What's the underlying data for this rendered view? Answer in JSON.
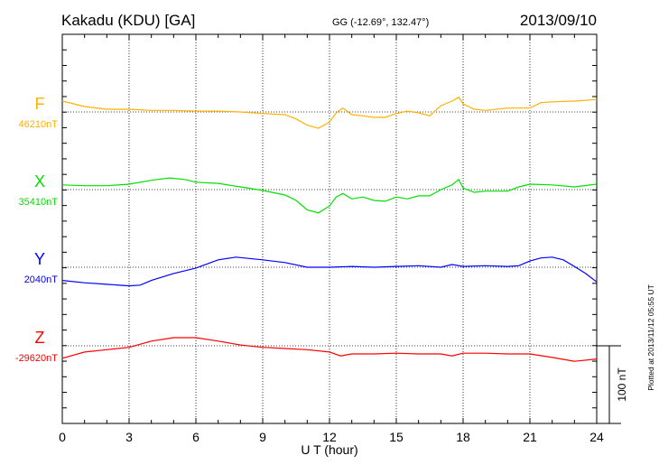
{
  "chart_data": {
    "type": "line",
    "title": "Kakadu (KDU)  [GA]",
    "subtitle": "GG (-12.69°, 132.47°)",
    "date": "2013/09/10",
    "xlabel": "U T (hour)",
    "xlim": [
      0,
      24
    ],
    "xticks": [
      "0",
      "3",
      "6",
      "9",
      "12",
      "15",
      "18",
      "21",
      "24"
    ],
    "scale_bar": "100 nT",
    "footer": "Plotted at 2013/11/12 05:55 UT",
    "grid": true,
    "series": [
      {
        "name": "F",
        "baseline_label": "46210nT",
        "color": "#ffb000",
        "x": [
          0,
          1,
          2,
          3,
          4,
          5,
          6,
          7,
          8,
          9,
          10,
          10.5,
          11,
          11.5,
          12,
          12.3,
          12.6,
          13,
          13.5,
          14,
          14.5,
          15,
          15.5,
          16,
          16.5,
          17,
          17.5,
          17.8,
          18,
          18.5,
          19,
          20,
          21,
          21.5,
          22,
          23,
          24
        ],
        "y": [
          14,
          7,
          3.5,
          3.5,
          2,
          2,
          1,
          1,
          0,
          -2,
          -3.5,
          -9,
          -17,
          -21,
          -13,
          -1,
          5,
          -3.5,
          -5,
          -7,
          -7,
          -2,
          1,
          -1,
          -5,
          8,
          14,
          19,
          10.5,
          3.5,
          2,
          5,
          5,
          12,
          13,
          14,
          16
        ]
      },
      {
        "name": "X",
        "baseline_label": "35410nT",
        "color": "#00e000",
        "x": [
          0,
          1,
          2,
          3,
          4,
          4.8,
          5.5,
          6,
          7,
          8,
          9,
          10,
          10.5,
          11,
          11.5,
          12,
          12.3,
          12.6,
          13,
          13.5,
          14,
          14.5,
          15,
          15.5,
          16,
          16.5,
          17,
          17.5,
          17.8,
          18,
          18.5,
          19,
          20,
          20.5,
          21,
          22,
          23,
          24
        ],
        "y": [
          6,
          5,
          5,
          7,
          12,
          15,
          13,
          9.5,
          8,
          3.5,
          -1,
          -7,
          -14,
          -26,
          -30,
          -21,
          -9.5,
          -5,
          -12,
          -9.5,
          -14,
          -15,
          -9.5,
          -12,
          -8,
          -8,
          0,
          6,
          13,
          2,
          -3.5,
          -2,
          -2,
          3.5,
          7,
          6,
          3.5,
          7
        ]
      },
      {
        "name": "Y",
        "baseline_label": "2040nT",
        "color": "#0000ff",
        "x": [
          0,
          1,
          2,
          3,
          3.5,
          4,
          5,
          6,
          7,
          7.8,
          9,
          10,
          11,
          12,
          13,
          14,
          15,
          16,
          17,
          17.5,
          18,
          19,
          20,
          20.5,
          21,
          21.5,
          22,
          22.5,
          23,
          23.5,
          24
        ],
        "y": [
          -17,
          -20,
          -22,
          -24,
          -23,
          -17,
          -8,
          -1,
          9.5,
          13,
          9.5,
          6,
          0,
          0,
          1,
          0,
          1,
          2,
          0,
          3.5,
          1,
          2,
          1,
          2,
          8,
          12,
          13,
          9.5,
          1,
          -8,
          -19
        ]
      },
      {
        "name": "Z",
        "baseline_label": "-29620nT",
        "color": "#ff0000",
        "x": [
          0,
          1,
          2,
          3,
          4,
          5,
          6,
          7,
          8,
          9,
          10,
          11,
          12,
          12.5,
          13,
          14,
          15,
          16,
          17,
          17.5,
          18,
          19,
          20,
          21,
          22,
          23,
          24
        ],
        "y": [
          -16,
          -8,
          -5,
          -2,
          6,
          10.5,
          10.5,
          6,
          1,
          -2,
          -3.5,
          -5,
          -8,
          -13,
          -10.5,
          -10.5,
          -9.5,
          -10.5,
          -10.5,
          -13,
          -9.5,
          -9.5,
          -10.5,
          -10.5,
          -15,
          -20,
          -17
        ]
      }
    ]
  }
}
